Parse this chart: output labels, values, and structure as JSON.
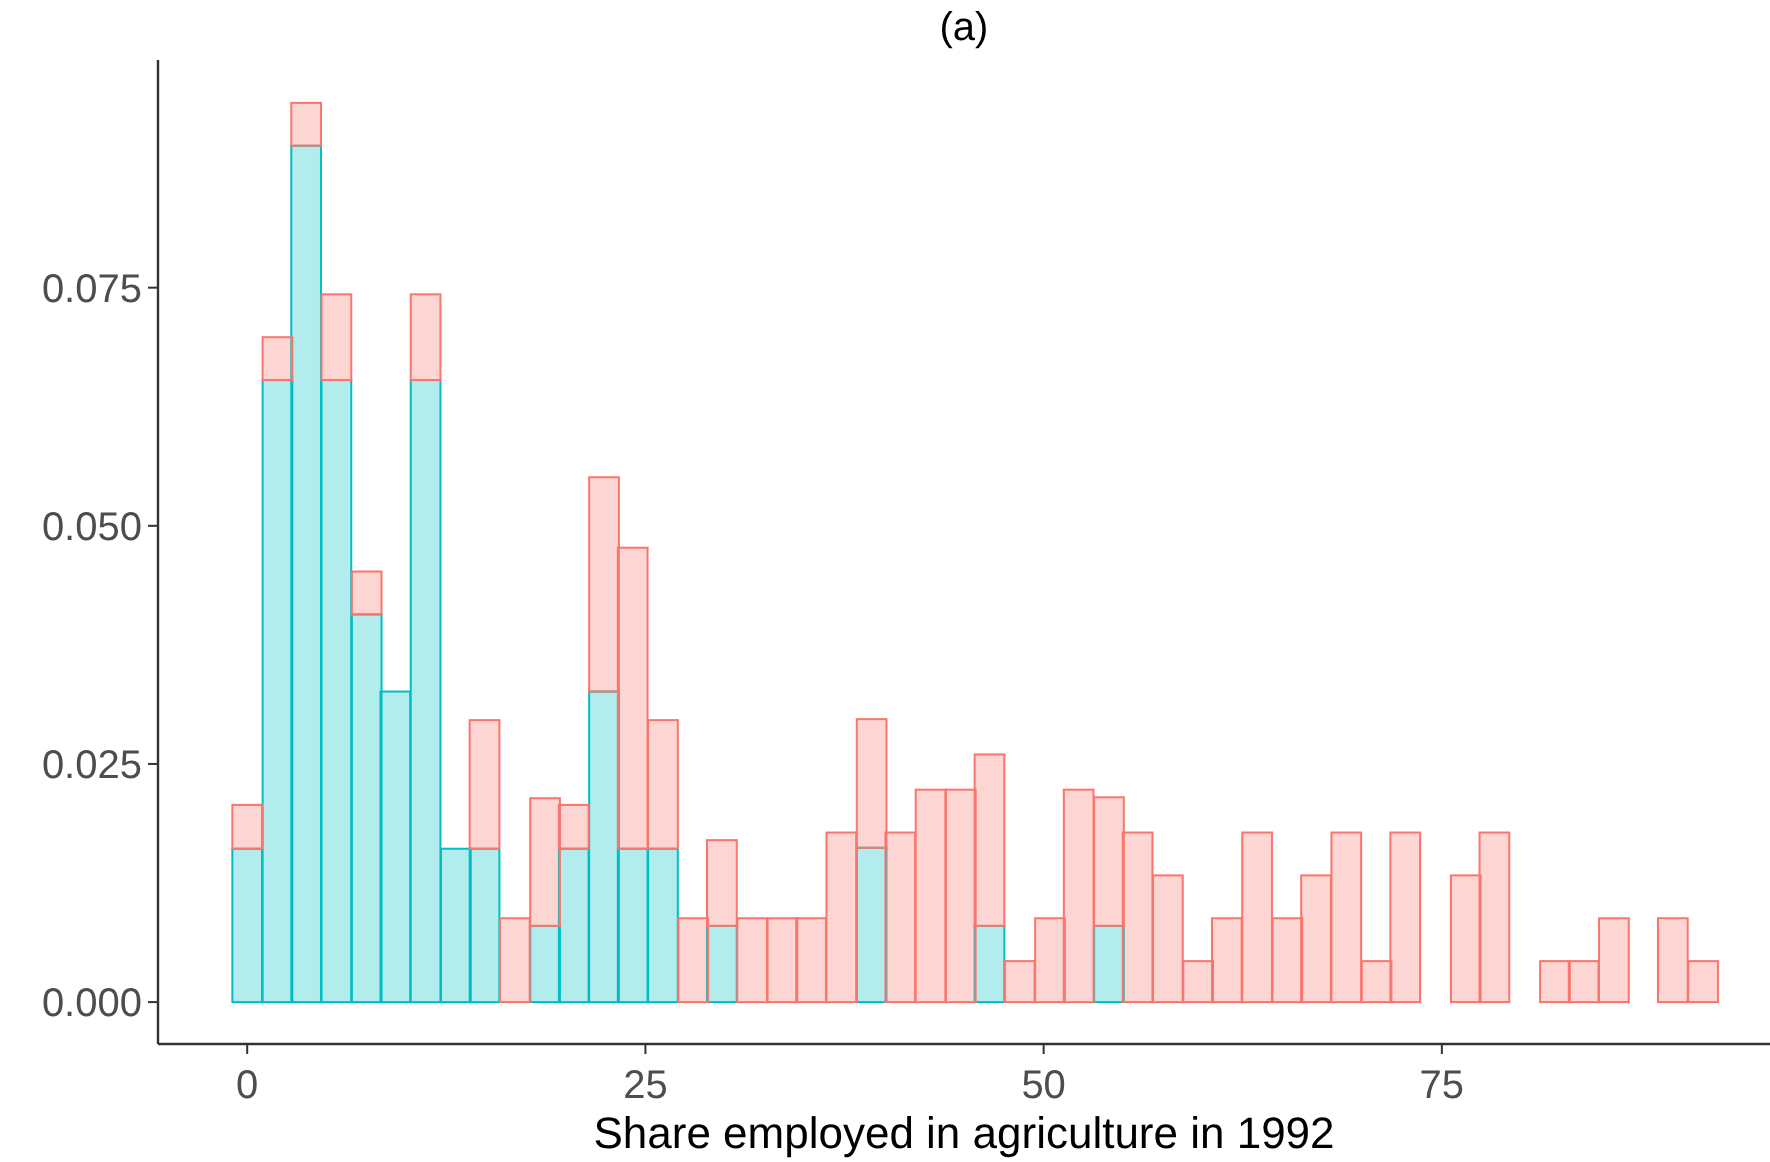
{
  "chart_data": {
    "type": "bar",
    "title": "(a)",
    "xlabel": "Share employed in agriculture in 1992",
    "stacked": true,
    "x": [
      0,
      1.9,
      3.7,
      5.6,
      7.5,
      9.3,
      11.2,
      13.1,
      14.9,
      16.8,
      18.7,
      20.5,
      22.4,
      24.2,
      26.1,
      28,
      29.8,
      31.7,
      33.6,
      35.4,
      37.3,
      39.2,
      41,
      42.9,
      44.8,
      46.6,
      48.5,
      50.4,
      52.2,
      54.1,
      55.9,
      57.8,
      59.7,
      61.5,
      63.4,
      65.3,
      67.1,
      69,
      70.9,
      72.7,
      74.6,
      76.5,
      78.3,
      80.2,
      82.1,
      83.9,
      85.8,
      87.7,
      89.5,
      91.4
    ],
    "series": [
      {
        "color": "#00bfc4",
        "values": [
          0.0161,
          0.0653,
          0.0899,
          0.0653,
          0.0407,
          0.0326,
          0.0653,
          0.0161,
          0.0161,
          0,
          0.008,
          0.0161,
          0.0326,
          0.0161,
          0.0161,
          0,
          0.008,
          0,
          0,
          0,
          0,
          0.0162,
          0,
          0,
          0,
          0.008,
          0,
          0,
          0,
          0.008,
          0,
          0,
          0,
          0,
          0,
          0,
          0,
          0,
          0,
          0,
          0,
          0,
          0,
          0,
          0,
          0,
          0,
          0,
          0,
          0
        ]
      },
      {
        "color": "#f8766d",
        "values": [
          0.0046,
          0.0045,
          0.0045,
          0.009,
          0.0045,
          0,
          0.009,
          0,
          0.0135,
          0.0088,
          0.0134,
          0.0046,
          0.0225,
          0.0316,
          0.0135,
          0.0088,
          0.009,
          0.0088,
          0.0088,
          0.0088,
          0.0178,
          0.0135,
          0.0178,
          0.0223,
          0.0223,
          0.018,
          0.0043,
          0.0088,
          0.0223,
          0.0135,
          0.0178,
          0.0133,
          0.0043,
          0.0088,
          0.0178,
          0.0088,
          0.0133,
          0.0178,
          0.0043,
          0.0178,
          0,
          0.0133,
          0.0178,
          0,
          0.0043,
          0.0043,
          0.0088,
          0,
          0.0088,
          0.0043
        ]
      }
    ],
    "xlim": [
      -5.6,
      95.6
    ],
    "ylim": [
      -0.0044,
      0.0989
    ],
    "xticks": [
      0,
      25,
      50,
      75
    ],
    "yticks": [
      {
        "value": 0,
        "label": "0.000"
      },
      {
        "value": 0.025,
        "label": "0.025"
      },
      {
        "value": 0.05,
        "label": "0.050"
      },
      {
        "value": 0.075,
        "label": "0.075"
      }
    ],
    "grid": false,
    "legend": false
  }
}
